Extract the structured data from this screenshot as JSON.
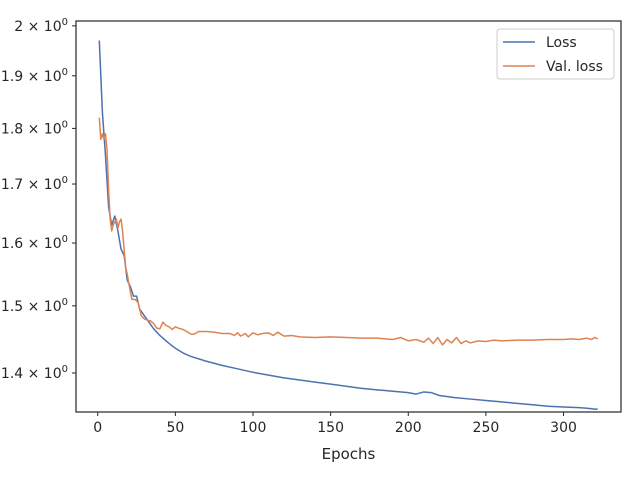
{
  "chart_data": {
    "type": "line",
    "title": "",
    "xlabel": "Epochs",
    "ylabel": "",
    "xlim": [
      -14,
      337
    ],
    "ylim": [
      1.345,
      2.01
    ],
    "yscale": "log",
    "grid": false,
    "legend_position": "top-right",
    "x_ticks": [
      0,
      50,
      100,
      150,
      200,
      250,
      300
    ],
    "y_ticks": [
      {
        "value": 1.4,
        "mantissa": "1.4",
        "label": "1.4 × 10⁰"
      },
      {
        "value": 1.5,
        "mantissa": "1.5",
        "label": "1.5 × 10⁰"
      },
      {
        "value": 1.6,
        "mantissa": "1.6",
        "label": "1.6 × 10⁰"
      },
      {
        "value": 1.7,
        "mantissa": "1.7",
        "label": "1.7 × 10⁰"
      },
      {
        "value": 1.8,
        "mantissa": "1.8",
        "label": "1.8 × 10⁰"
      },
      {
        "value": 1.9,
        "mantissa": "1.9",
        "label": "1.9 × 10⁰"
      },
      {
        "value": 2.0,
        "mantissa": "2",
        "label": "2 × 10⁰"
      }
    ],
    "series": [
      {
        "name": "Loss",
        "color": "#4c72b0",
        "x": [
          1,
          3,
          5,
          7,
          9,
          11,
          13,
          15,
          17,
          19,
          21,
          23,
          25,
          27,
          30,
          33,
          36,
          40,
          45,
          50,
          55,
          60,
          70,
          80,
          90,
          100,
          110,
          120,
          130,
          140,
          150,
          160,
          170,
          180,
          190,
          200,
          205,
          210,
          215,
          220,
          230,
          240,
          250,
          260,
          270,
          280,
          290,
          300,
          310,
          316,
          320,
          322
        ],
        "y": [
          1.97,
          1.83,
          1.75,
          1.66,
          1.63,
          1.645,
          1.62,
          1.59,
          1.58,
          1.54,
          1.53,
          1.515,
          1.515,
          1.495,
          1.485,
          1.475,
          1.465,
          1.455,
          1.445,
          1.436,
          1.429,
          1.424,
          1.417,
          1.411,
          1.406,
          1.401,
          1.397,
          1.393,
          1.39,
          1.387,
          1.384,
          1.381,
          1.378,
          1.376,
          1.374,
          1.372,
          1.37,
          1.373,
          1.372,
          1.368,
          1.365,
          1.363,
          1.361,
          1.359,
          1.357,
          1.355,
          1.353,
          1.352,
          1.351,
          1.35,
          1.349,
          1.349
        ]
      },
      {
        "name": "Val. loss",
        "color": "#dd8452",
        "x": [
          1,
          2,
          3,
          4,
          5,
          6,
          7,
          8,
          9,
          10,
          11,
          12,
          13,
          14,
          15,
          16,
          17,
          18,
          19,
          20,
          22,
          24,
          26,
          28,
          30,
          32,
          34,
          36,
          38,
          40,
          42,
          44,
          46,
          48,
          50,
          52,
          55,
          58,
          60,
          62,
          65,
          70,
          75,
          80,
          85,
          88,
          90,
          92,
          95,
          97,
          100,
          103,
          106,
          110,
          113,
          116,
          120,
          125,
          130,
          140,
          150,
          160,
          170,
          180,
          190,
          195,
          200,
          205,
          210,
          213,
          216,
          219,
          222,
          225,
          228,
          231,
          234,
          237,
          240,
          245,
          250,
          255,
          260,
          270,
          280,
          290,
          300,
          305,
          310,
          315,
          318,
          320,
          322
        ],
        "y": [
          1.82,
          1.78,
          1.79,
          1.78,
          1.79,
          1.76,
          1.69,
          1.64,
          1.62,
          1.63,
          1.635,
          1.64,
          1.625,
          1.635,
          1.64,
          1.62,
          1.59,
          1.56,
          1.55,
          1.535,
          1.51,
          1.51,
          1.505,
          1.485,
          1.48,
          1.478,
          1.477,
          1.473,
          1.466,
          1.465,
          1.475,
          1.47,
          1.468,
          1.464,
          1.468,
          1.466,
          1.464,
          1.46,
          1.457,
          1.457,
          1.461,
          1.461,
          1.46,
          1.458,
          1.458,
          1.455,
          1.459,
          1.454,
          1.458,
          1.453,
          1.459,
          1.456,
          1.458,
          1.459,
          1.455,
          1.46,
          1.454,
          1.455,
          1.453,
          1.452,
          1.453,
          1.452,
          1.451,
          1.451,
          1.449,
          1.452,
          1.447,
          1.449,
          1.445,
          1.451,
          1.443,
          1.452,
          1.441,
          1.449,
          1.444,
          1.452,
          1.443,
          1.447,
          1.444,
          1.447,
          1.446,
          1.448,
          1.447,
          1.448,
          1.448,
          1.449,
          1.449,
          1.45,
          1.449,
          1.451,
          1.449,
          1.452,
          1.45
        ]
      }
    ]
  }
}
